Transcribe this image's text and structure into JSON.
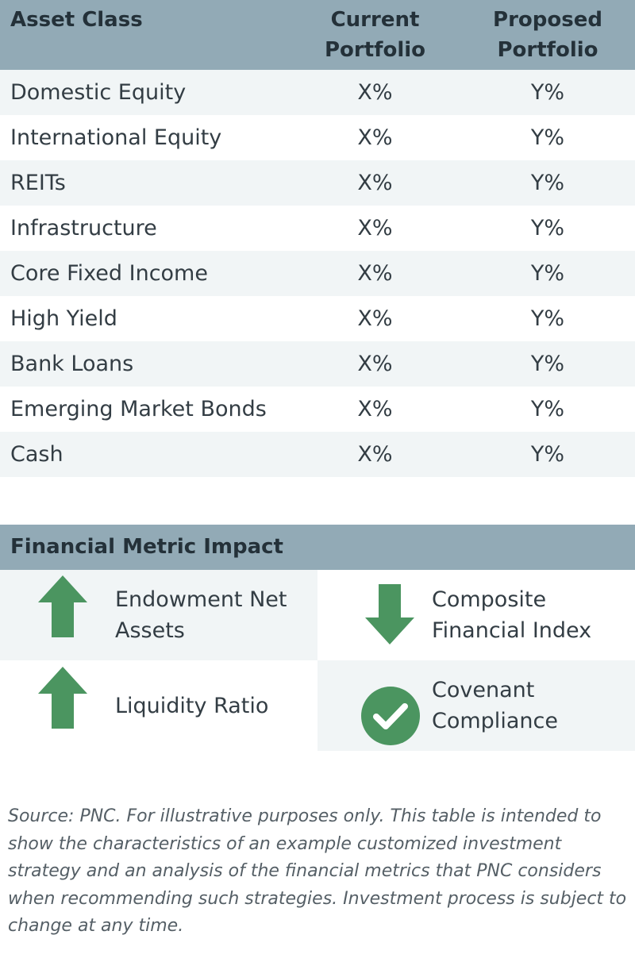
{
  "allocation_table": {
    "headers": {
      "asset_class": "Asset Class",
      "current_line1": "Current",
      "current_line2": "Portfolio",
      "proposed_line1": "Proposed",
      "proposed_line2": "Portfolio"
    },
    "rows": [
      {
        "asset": "Domestic Equity",
        "current": "X%",
        "proposed": "Y%"
      },
      {
        "asset": "International Equity",
        "current": "X%",
        "proposed": "Y%"
      },
      {
        "asset": "REITs",
        "current": "X%",
        "proposed": "Y%"
      },
      {
        "asset": "Infrastructure",
        "current": "X%",
        "proposed": "Y%"
      },
      {
        "asset": "Core Fixed Income",
        "current": "X%",
        "proposed": "Y%"
      },
      {
        "asset": "High Yield",
        "current": "X%",
        "proposed": "Y%"
      },
      {
        "asset": "Bank Loans",
        "current": "X%",
        "proposed": "Y%"
      },
      {
        "asset": "Emerging Market Bonds",
        "current": "X%",
        "proposed": "Y%"
      },
      {
        "asset": "Cash",
        "current": "X%",
        "proposed": "Y%"
      }
    ]
  },
  "impact": {
    "title": "Financial Metric Impact",
    "metrics": [
      {
        "line1": "Endowment Net",
        "line2": "Assets",
        "icon": "arrow-up-icon"
      },
      {
        "line1": "Composite",
        "line2": "Financial Index",
        "icon": "arrow-down-icon"
      },
      {
        "line1": "Liquidity Ratio",
        "line2": "",
        "icon": "arrow-up-icon"
      },
      {
        "line1": "Covenant",
        "line2": "Compliance",
        "icon": "checkmark-circle-icon"
      }
    ]
  },
  "colors": {
    "header_bg": "#92aab6",
    "row_shade": "#f1f5f6",
    "icon_green": "#4b9560"
  },
  "footnote": "Source: PNC. For illustrative purposes only. This table is intended to show the characteristics of an example customized investment strategy and an analysis of the financial metrics that PNC considers when recommending such strategies. Investment process is subject to change at any time."
}
